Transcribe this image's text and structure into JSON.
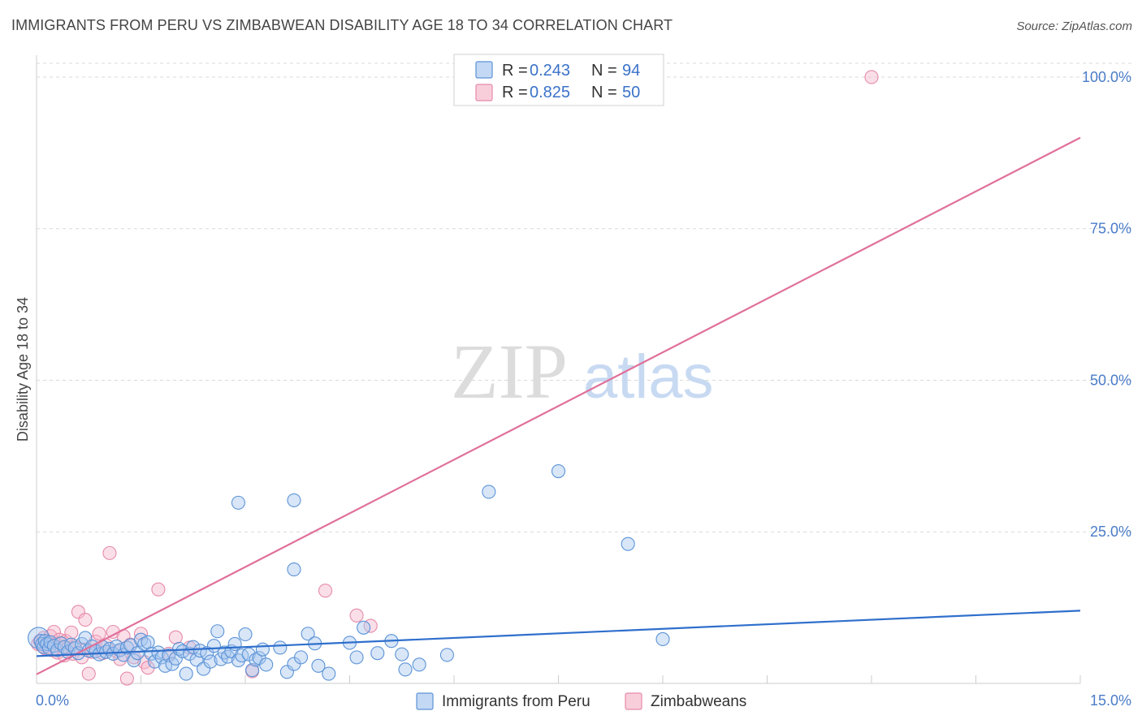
{
  "title": "IMMIGRANTS FROM PERU VS ZIMBABWEAN DISABILITY AGE 18 TO 34 CORRELATION CHART",
  "source": "Source: ZipAtlas.com",
  "watermark": {
    "zip": "ZIP",
    "atlas": "atlas"
  },
  "colors": {
    "peru_fill": "#a9c8ef",
    "peru_stroke": "#5b93d6",
    "peru_line": "#2f6fcc",
    "zim_fill": "#f6b9cc",
    "zim_stroke": "#e58aa8",
    "zim_line": "#e0709a",
    "grid": "#d9d9d9",
    "tick_label": "#4a7cc8"
  },
  "legend": {
    "rows": [
      {
        "r_label": "R = ",
        "r_value": "0.243",
        "n_label": "N = ",
        "n_value": "94"
      },
      {
        "r_label": "R = ",
        "r_value": "0.825",
        "n_label": "N = ",
        "n_value": "50"
      }
    ]
  },
  "bottom_legend": [
    "Immigrants from Peru",
    "Zimbabweans"
  ],
  "chart_data": {
    "type": "scatter",
    "title": "IMMIGRANTS FROM PERU VS ZIMBABWEAN DISABILITY AGE 18 TO 34 CORRELATION CHART",
    "xlabel": "",
    "ylabel": "Disability Age 18 to 34",
    "xlim": [
      0,
      15
    ],
    "ylim": [
      0,
      102
    ],
    "x_tick_labels": [
      "0.0%",
      "15.0%"
    ],
    "y_ticks": [
      25,
      50,
      75,
      100
    ],
    "y_tick_labels": [
      "25.0%",
      "50.0%",
      "75.0%",
      "100.0%"
    ],
    "series": [
      {
        "name": "Immigrants from Peru",
        "R": 0.243,
        "N": 94,
        "trend": {
          "x0": 0,
          "y0": 4.5,
          "x1": 15,
          "y1": 12.0
        },
        "points": [
          [
            0.03,
            7.5
          ],
          [
            0.06,
            7.0
          ],
          [
            0.08,
            6.5
          ],
          [
            0.1,
            6.0
          ],
          [
            0.12,
            7.0
          ],
          [
            0.15,
            6.5
          ],
          [
            0.18,
            5.8
          ],
          [
            0.2,
            6.8
          ],
          [
            0.25,
            6.2
          ],
          [
            0.3,
            5.5
          ],
          [
            0.35,
            6.6
          ],
          [
            0.4,
            6.0
          ],
          [
            0.45,
            5.2
          ],
          [
            0.5,
            6.4
          ],
          [
            0.55,
            5.8
          ],
          [
            0.6,
            5.0
          ],
          [
            0.65,
            6.5
          ],
          [
            0.7,
            7.5
          ],
          [
            0.75,
            5.4
          ],
          [
            0.8,
            6.1
          ],
          [
            0.85,
            5.3
          ],
          [
            0.9,
            4.8
          ],
          [
            0.95,
            6.0
          ],
          [
            1.0,
            5.2
          ],
          [
            1.05,
            5.7
          ],
          [
            1.1,
            4.9
          ],
          [
            1.15,
            6.1
          ],
          [
            1.2,
            5.5
          ],
          [
            1.25,
            4.7
          ],
          [
            1.3,
            5.9
          ],
          [
            1.35,
            6.3
          ],
          [
            1.4,
            3.8
          ],
          [
            1.45,
            5.0
          ],
          [
            1.5,
            7.2
          ],
          [
            1.55,
            6.5
          ],
          [
            1.6,
            6.8
          ],
          [
            1.65,
            4.9
          ],
          [
            1.7,
            3.6
          ],
          [
            1.75,
            5.1
          ],
          [
            1.8,
            4.3
          ],
          [
            1.85,
            2.9
          ],
          [
            1.9,
            4.6
          ],
          [
            1.95,
            3.2
          ],
          [
            2.0,
            4.1
          ],
          [
            2.05,
            5.7
          ],
          [
            2.1,
            5.3
          ],
          [
            2.15,
            1.6
          ],
          [
            2.2,
            4.9
          ],
          [
            2.25,
            6.0
          ],
          [
            2.3,
            3.9
          ],
          [
            2.35,
            5.4
          ],
          [
            2.4,
            2.4
          ],
          [
            2.45,
            5.0
          ],
          [
            2.5,
            3.6
          ],
          [
            2.55,
            6.2
          ],
          [
            2.6,
            8.6
          ],
          [
            2.65,
            4.0
          ],
          [
            2.7,
            5.1
          ],
          [
            2.75,
            4.4
          ],
          [
            2.8,
            5.3
          ],
          [
            2.85,
            6.5
          ],
          [
            2.9,
            3.8
          ],
          [
            2.95,
            4.6
          ],
          [
            3.0,
            8.1
          ],
          [
            3.05,
            4.8
          ],
          [
            3.1,
            2.2
          ],
          [
            3.15,
            3.9
          ],
          [
            3.2,
            4.2
          ],
          [
            3.25,
            5.6
          ],
          [
            3.3,
            3.1
          ],
          [
            3.5,
            5.9
          ],
          [
            3.6,
            1.9
          ],
          [
            3.7,
            3.2
          ],
          [
            3.8,
            4.3
          ],
          [
            3.9,
            8.2
          ],
          [
            4.0,
            6.6
          ],
          [
            4.05,
            2.9
          ],
          [
            4.2,
            1.6
          ],
          [
            4.5,
            6.7
          ],
          [
            4.6,
            4.3
          ],
          [
            4.7,
            9.2
          ],
          [
            4.9,
            5.0
          ],
          [
            5.1,
            7.0
          ],
          [
            5.25,
            4.8
          ],
          [
            5.3,
            2.3
          ],
          [
            5.5,
            3.1
          ],
          [
            3.7,
            18.8
          ],
          [
            3.7,
            30.2
          ],
          [
            5.9,
            4.7
          ],
          [
            6.5,
            31.6
          ],
          [
            7.5,
            35.0
          ],
          [
            8.5,
            23.0
          ],
          [
            9.0,
            7.3
          ],
          [
            2.9,
            29.8
          ]
        ]
      },
      {
        "name": "Zimbabweans",
        "R": 0.825,
        "N": 50,
        "trend": {
          "x0": 0,
          "y0": 1.5,
          "x1": 15,
          "y1": 90.0
        },
        "points": [
          [
            0.02,
            6.5
          ],
          [
            0.05,
            7.0
          ],
          [
            0.08,
            6.2
          ],
          [
            0.1,
            7.5
          ],
          [
            0.12,
            5.8
          ],
          [
            0.15,
            6.8
          ],
          [
            0.18,
            6.0
          ],
          [
            0.2,
            7.8
          ],
          [
            0.22,
            5.5
          ],
          [
            0.25,
            8.5
          ],
          [
            0.28,
            6.4
          ],
          [
            0.3,
            5.1
          ],
          [
            0.33,
            7.2
          ],
          [
            0.36,
            6.6
          ],
          [
            0.4,
            4.6
          ],
          [
            0.42,
            7.0
          ],
          [
            0.45,
            5.9
          ],
          [
            0.5,
            8.4
          ],
          [
            0.52,
            4.9
          ],
          [
            0.55,
            6.1
          ],
          [
            0.6,
            11.8
          ],
          [
            0.65,
            4.3
          ],
          [
            0.7,
            5.6
          ],
          [
            0.75,
            1.6
          ],
          [
            0.8,
            5.2
          ],
          [
            0.85,
            6.9
          ],
          [
            0.9,
            8.2
          ],
          [
            0.95,
            5.0
          ],
          [
            1.0,
            6.3
          ],
          [
            1.05,
            21.5
          ],
          [
            1.1,
            8.5
          ],
          [
            1.15,
            5.3
          ],
          [
            1.2,
            4.0
          ],
          [
            1.25,
            7.8
          ],
          [
            1.3,
            0.8
          ],
          [
            1.35,
            6.4
          ],
          [
            1.4,
            4.3
          ],
          [
            1.5,
            8.2
          ],
          [
            1.55,
            3.5
          ],
          [
            1.6,
            2.6
          ],
          [
            1.75,
            15.5
          ],
          [
            1.9,
            4.9
          ],
          [
            2.0,
            7.6
          ],
          [
            2.2,
            5.9
          ],
          [
            3.1,
            2.0
          ],
          [
            4.15,
            15.3
          ],
          [
            4.6,
            11.2
          ],
          [
            4.8,
            9.5
          ],
          [
            0.7,
            10.5
          ],
          [
            12.0,
            100.0
          ]
        ]
      }
    ]
  }
}
